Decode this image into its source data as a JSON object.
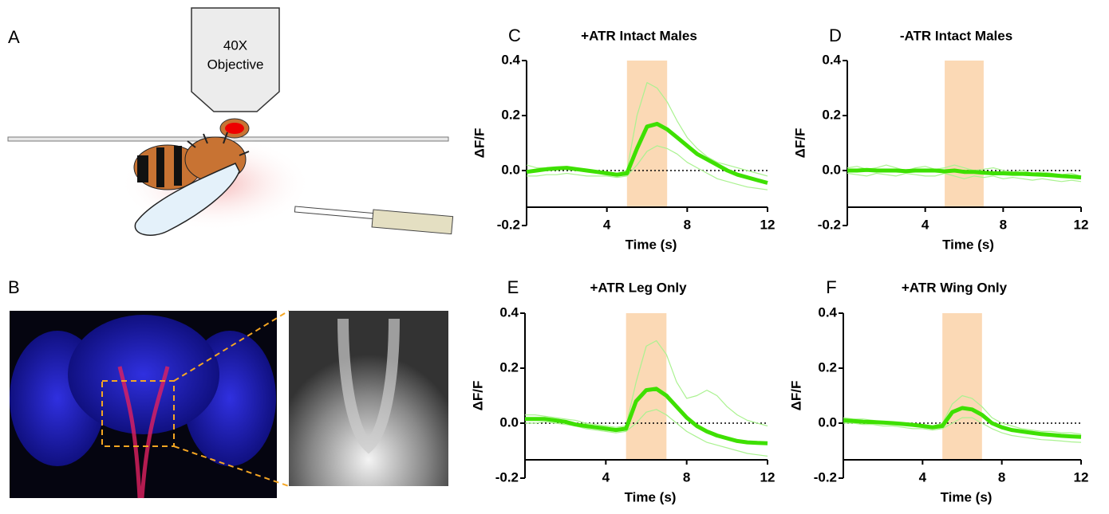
{
  "diagram": {
    "panel_a": "A",
    "panel_b": "B",
    "objective": [
      "40X",
      "Objective"
    ]
  },
  "chart_data": [
    {
      "type": "line",
      "panel": "C",
      "title": "+ATR Intact Males",
      "xlabel": "Time (s)",
      "ylabel": "ΔF/F",
      "xlim": [
        0,
        12
      ],
      "xticks": [
        4,
        8,
        12
      ],
      "ylim": [
        -0.2,
        0.4
      ],
      "yticks": [
        -0.2,
        {
          "value": 0,
          "label": "0.0"
        },
        0.2,
        0.4
      ],
      "stim": [
        5,
        7
      ],
      "stim_color": "#fbd9b5",
      "x": [
        0,
        0.5,
        1,
        1.5,
        2,
        2.5,
        3,
        3.5,
        4,
        4.5,
        5,
        5.5,
        6,
        6.5,
        7,
        7.5,
        8,
        8.5,
        9,
        9.5,
        10,
        10.5,
        11,
        11.5,
        12
      ],
      "series": [
        {
          "color": "#aaf290",
          "values": [
            0.02,
            0.01,
            0.01,
            0.005,
            0.01,
            0,
            0,
            -0.01,
            -0.01,
            -0.01,
            0,
            0.2,
            0.32,
            0.3,
            0.25,
            0.18,
            0.12,
            0.08,
            0.05,
            0.03,
            0.02,
            0.01,
            0,
            -0.01,
            -0.02
          ]
        },
        {
          "color": "#aaf290",
          "values": [
            -0.02,
            -0.02,
            -0.015,
            -0.015,
            -0.01,
            -0.015,
            -0.02,
            -0.02,
            -0.02,
            -0.025,
            -0.02,
            0.02,
            0.07,
            0.09,
            0.08,
            0.06,
            0.03,
            0.01,
            -0.01,
            -0.03,
            -0.04,
            -0.05,
            -0.06,
            -0.065,
            -0.07
          ]
        },
        {
          "color": "#3ee000",
          "values": [
            -0.005,
            0,
            0.005,
            0.008,
            0.01,
            0.005,
            0,
            -0.005,
            -0.01,
            -0.015,
            -0.01,
            0.08,
            0.16,
            0.17,
            0.15,
            0.12,
            0.09,
            0.06,
            0.04,
            0.02,
            0,
            -0.015,
            -0.025,
            -0.035,
            -0.045
          ]
        }
      ]
    },
    {
      "type": "line",
      "panel": "D",
      "title": "-ATR Intact Males",
      "xlabel": "Time (s)",
      "ylabel": "ΔF/F",
      "xlim": [
        0,
        12
      ],
      "xticks": [
        4,
        8,
        12
      ],
      "ylim": [
        -0.2,
        0.4
      ],
      "yticks": [
        -0.2,
        {
          "value": 0,
          "label": "0.0"
        },
        0.2,
        0.4
      ],
      "stim": [
        5,
        7
      ],
      "stim_color": "#fbd9b5",
      "x": [
        0,
        0.5,
        1,
        1.5,
        2,
        2.5,
        3,
        3.5,
        4,
        4.5,
        5,
        5.5,
        6,
        6.5,
        7,
        7.5,
        8,
        8.5,
        9,
        9.5,
        10,
        10.5,
        11,
        11.5,
        12
      ],
      "series": [
        {
          "color": "#aaf290",
          "values": [
            0.01,
            0.015,
            0.005,
            0.01,
            0.02,
            0.01,
            0,
            0.01,
            0.015,
            0.005,
            0.01,
            0.02,
            0.01,
            0.0,
            0.005,
            0.01,
            0.0,
            -0.005,
            0.0,
            -0.01,
            -0.005,
            -0.01,
            -0.015,
            -0.01,
            -0.02
          ]
        },
        {
          "color": "#aaf290",
          "values": [
            -0.01,
            -0.015,
            -0.02,
            -0.01,
            -0.015,
            -0.02,
            -0.01,
            -0.015,
            -0.02,
            -0.02,
            -0.01,
            -0.02,
            -0.03,
            -0.02,
            -0.025,
            -0.02,
            -0.03,
            -0.025,
            -0.03,
            -0.035,
            -0.03,
            -0.035,
            -0.04,
            -0.035,
            -0.04
          ]
        },
        {
          "color": "#3ee000",
          "values": [
            0,
            0,
            0.002,
            0,
            0,
            0,
            -0.002,
            0,
            0,
            0,
            -0.003,
            0,
            -0.005,
            -0.005,
            -0.008,
            -0.01,
            -0.01,
            -0.012,
            -0.012,
            -0.014,
            -0.015,
            -0.017,
            -0.02,
            -0.022,
            -0.025
          ]
        }
      ]
    },
    {
      "type": "line",
      "panel": "E",
      "title": "+ATR Leg Only",
      "xlabel": "Time (s)",
      "ylabel": "ΔF/F",
      "xlim": [
        0,
        12
      ],
      "xticks": [
        4,
        8,
        12
      ],
      "ylim": [
        -0.2,
        0.4
      ],
      "yticks": [
        -0.2,
        {
          "value": 0,
          "label": "0.0"
        },
        0.2,
        0.4
      ],
      "stim": [
        5,
        7
      ],
      "stim_color": "#fbd9b5",
      "x": [
        0,
        0.5,
        1,
        1.5,
        2,
        2.5,
        3,
        3.5,
        4,
        4.5,
        5,
        5.5,
        6,
        6.5,
        7,
        7.5,
        8,
        8.5,
        9,
        9.5,
        10,
        10.5,
        11,
        11.5,
        12
      ],
      "series": [
        {
          "color": "#aaf290",
          "values": [
            0.03,
            0.03,
            0.025,
            0.02,
            0.015,
            0.01,
            0,
            -0.005,
            -0.01,
            -0.015,
            -0.01,
            0.15,
            0.28,
            0.3,
            0.25,
            0.15,
            0.09,
            0.1,
            0.12,
            0.1,
            0.06,
            0.03,
            0.01,
            0,
            -0.01
          ]
        },
        {
          "color": "#aaf290",
          "values": [
            0.0,
            0.0,
            0.005,
            0,
            -0.005,
            -0.01,
            -0.02,
            -0.025,
            -0.03,
            -0.035,
            -0.03,
            0.0,
            0.04,
            0.05,
            0.03,
            0.0,
            -0.03,
            -0.05,
            -0.07,
            -0.08,
            -0.09,
            -0.1,
            -0.11,
            -0.115,
            -0.12
          ]
        },
        {
          "color": "#3ee000",
          "values": [
            0.015,
            0.015,
            0.015,
            0.01,
            0.005,
            -0.005,
            -0.01,
            -0.015,
            -0.02,
            -0.025,
            -0.02,
            0.08,
            0.12,
            0.125,
            0.1,
            0.06,
            0.02,
            -0.01,
            -0.03,
            -0.045,
            -0.055,
            -0.065,
            -0.07,
            -0.072,
            -0.073
          ]
        }
      ]
    },
    {
      "type": "line",
      "panel": "F",
      "title": "+ATR Wing Only",
      "xlabel": "Time (s)",
      "ylabel": "ΔF/F",
      "xlim": [
        0,
        12
      ],
      "xticks": [
        4,
        8,
        12
      ],
      "ylim": [
        -0.2,
        0.4
      ],
      "yticks": [
        -0.2,
        {
          "value": 0,
          "label": "0.0"
        },
        0.2,
        0.4
      ],
      "stim": [
        5,
        7
      ],
      "stim_color": "#fbd9b5",
      "x": [
        0,
        0.5,
        1,
        1.5,
        2,
        2.5,
        3,
        3.5,
        4,
        4.5,
        5,
        5.5,
        6,
        6.5,
        7,
        7.5,
        8,
        8.5,
        9,
        9.5,
        10,
        10.5,
        11,
        11.5,
        12
      ],
      "series": [
        {
          "color": "#aaf290",
          "values": [
            0.02,
            0.015,
            0.015,
            0.01,
            0.005,
            0.005,
            0,
            -0.005,
            -0.01,
            -0.01,
            0,
            0.07,
            0.1,
            0.09,
            0.06,
            0.02,
            0.0,
            -0.01,
            -0.02,
            -0.025,
            -0.03,
            -0.03,
            -0.035,
            -0.035,
            -0.04
          ]
        },
        {
          "color": "#aaf290",
          "values": [
            0,
            0,
            -0.005,
            -0.005,
            -0.01,
            -0.01,
            -0.015,
            -0.02,
            -0.02,
            -0.025,
            -0.02,
            0.0,
            0.02,
            0.02,
            0.0,
            -0.02,
            -0.035,
            -0.045,
            -0.05,
            -0.055,
            -0.06,
            -0.062,
            -0.065,
            -0.068,
            -0.07
          ]
        },
        {
          "color": "#3ee000",
          "values": [
            0.01,
            0.008,
            0.005,
            0.004,
            0.002,
            0,
            -0.003,
            -0.006,
            -0.01,
            -0.015,
            -0.01,
            0.04,
            0.055,
            0.05,
            0.03,
            0,
            -0.015,
            -0.025,
            -0.03,
            -0.035,
            -0.04,
            -0.043,
            -0.046,
            -0.048,
            -0.05
          ]
        }
      ]
    }
  ]
}
